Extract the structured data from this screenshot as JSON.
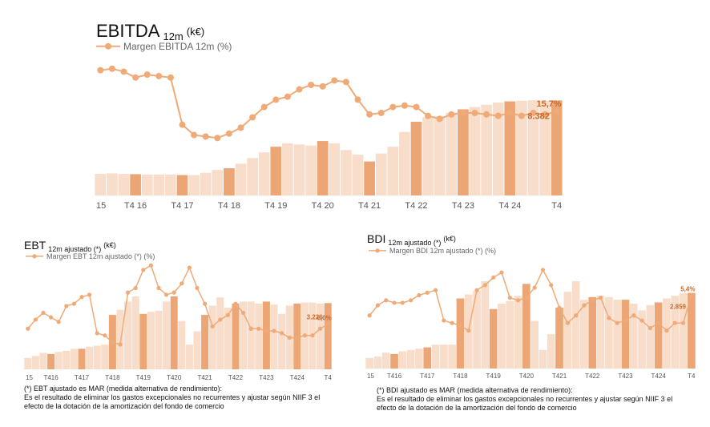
{
  "colors": {
    "bar_light": "#f8ddca",
    "bar_dark": "#eca675",
    "line": "#f0aa78",
    "value_label": "#c56a2a"
  },
  "chart_data": [
    {
      "id": "ebitda",
      "type": "bar",
      "title": "EBITDA",
      "title_sub": "12m",
      "title_unit": "(k€)",
      "legend_line": "Margen EBITDA 12m (%)",
      "x_tick_labels": [
        "15",
        "T4 16",
        "T4 17",
        "T4 18",
        "T4 19",
        "T4 20",
        "T4 21",
        "T4 22",
        "T4 23",
        "T4 24",
        "T4"
      ],
      "tick_positions": [
        0,
        3,
        7,
        11,
        15,
        19,
        23,
        27,
        31,
        35,
        39
      ],
      "bar_values": [
        1900,
        1950,
        1900,
        1880,
        1850,
        1850,
        1850,
        1800,
        1800,
        2000,
        2250,
        2400,
        2800,
        3300,
        3800,
        4300,
        4600,
        4500,
        4400,
        4800,
        4600,
        4000,
        3600,
        3000,
        3700,
        4300,
        5600,
        6500,
        6900,
        7000,
        7300,
        7600,
        7800,
        8000,
        8200,
        8300,
        8350,
        8400,
        8350,
        8382
      ],
      "highlight_bars": [
        3,
        7,
        11,
        15,
        19,
        23,
        27,
        31,
        35,
        39
      ],
      "bar_ylim": [
        0,
        13000
      ],
      "bar_last_label": "8.382",
      "line_values": [
        18.5,
        18.6,
        18.4,
        18.0,
        18.2,
        18.1,
        18.0,
        14.8,
        14.1,
        14.0,
        13.9,
        14.2,
        14.6,
        15.3,
        16.0,
        16.5,
        16.7,
        17.2,
        17.5,
        17.4,
        17.8,
        17.7,
        16.5,
        15.5,
        15.6,
        16.0,
        16.1,
        16.0,
        15.4,
        15.2,
        15.5,
        15.6,
        15.6,
        15.5,
        15.4,
        15.6,
        15.4,
        15.6,
        15.5,
        15.7
      ],
      "line_ylim": [
        10,
        20
      ],
      "line_last_label": "15,7%"
    },
    {
      "id": "ebt",
      "type": "bar",
      "title": "EBT",
      "title_sub": "12m ajustado (*)",
      "title_unit": "(k€)",
      "legend_line": "Margen EBT 12m ajustado (*) (%)",
      "x_tick_labels": [
        "15",
        "T416",
        "T417",
        "T418",
        "T419",
        "T420",
        "T421",
        "T422",
        "T423",
        "T424",
        "T4"
      ],
      "tick_positions": [
        0,
        3,
        7,
        11,
        15,
        19,
        23,
        27,
        31,
        35,
        39
      ],
      "bar_values": [
        550,
        650,
        800,
        750,
        850,
        900,
        1000,
        1000,
        1100,
        1150,
        1200,
        2650,
        2900,
        3300,
        3550,
        2700,
        2800,
        2850,
        3300,
        3550,
        2350,
        1200,
        1850,
        2650,
        3100,
        3500,
        3000,
        3200,
        3300,
        3300,
        3200,
        3300,
        3150,
        2700,
        3100,
        3200,
        3250,
        3250,
        3200,
        3226
      ],
      "highlight_bars": [
        3,
        7,
        11,
        15,
        19,
        23,
        27,
        31,
        35,
        39
      ],
      "bar_ylim": [
        0,
        5500
      ],
      "bar_last_label": "3.226",
      "line_values": [
        5.8,
        6.2,
        6.5,
        6.3,
        6.1,
        6.8,
        6.9,
        7.2,
        7.3,
        5.6,
        5.5,
        5.2,
        5.1,
        7.4,
        7.6,
        8.4,
        8.6,
        7.6,
        7.3,
        7.4,
        7.8,
        8.5,
        7.6,
        6.9,
        5.9,
        6.2,
        6.4,
        6.9,
        6.5,
        5.8,
        5.8,
        5.7,
        5.7,
        5.6,
        5.4,
        5.4,
        5.5,
        5.5,
        5.8,
        6.0
      ],
      "line_ylim": [
        4,
        9
      ],
      "line_last_label": "6,0%"
    },
    {
      "id": "bdi",
      "type": "bar",
      "title": "BDI",
      "title_sub": "12m ajustado (*)",
      "title_unit": "(k€)",
      "legend_line": "Margen BDI 12m ajustado (*) (%)",
      "x_tick_labels": [
        "15",
        "T416",
        "T417",
        "T418",
        "T419",
        "T420",
        "T421",
        "T422",
        "T423",
        "T424",
        "T4"
      ],
      "tick_positions": [
        0,
        3,
        7,
        11,
        15,
        19,
        23,
        27,
        31,
        35,
        39
      ],
      "bar_values": [
        400,
        450,
        600,
        550,
        650,
        700,
        750,
        800,
        900,
        900,
        900,
        2650,
        2800,
        2950,
        3300,
        2250,
        2450,
        2550,
        2750,
        3200,
        1800,
        700,
        1300,
        2300,
        2900,
        3300,
        2600,
        2700,
        2750,
        2700,
        2600,
        2600,
        2450,
        2200,
        2400,
        2500,
        2650,
        2750,
        2850,
        2859
      ],
      "highlight_bars": [
        3,
        7,
        11,
        15,
        19,
        23,
        27,
        31,
        35,
        39
      ],
      "bar_ylim": [
        0,
        4300
      ],
      "bar_last_label": "2.859",
      "line_values": [
        4.6,
        5.0,
        5.2,
        5.1,
        5.1,
        5.2,
        5.4,
        5.5,
        5.6,
        4.4,
        4.3,
        4.2,
        4.0,
        5.6,
        5.8,
        6.1,
        6.3,
        5.3,
        5.2,
        5.3,
        5.7,
        6.4,
        5.8,
        4.9,
        4.3,
        4.6,
        5.0,
        5.2,
        5.3,
        4.5,
        4.3,
        4.4,
        4.6,
        4.4,
        4.1,
        4.3,
        4.0,
        4.3,
        4.3,
        5.4
      ],
      "line_ylim": [
        2.5,
        7
      ],
      "line_last_label": "5,4%"
    }
  ],
  "footnotes": {
    "ebt_line1": "(*) EBT ajustado es MAR (medida alternativa de rendimiento):",
    "ebt_line2": "Es el resultado de eliminar los gastos excepcionales no recurrentes y ajustar según NIIF 3 el",
    "ebt_line3": "efecto de la dotación de la amortización del fondo de comercio",
    "bdi_line1": "(*) BDI ajustado es MAR (medida alternativa de rendimiento):",
    "bdi_line2": "Es el resultado de eliminar los gastos excepcionales no recurrentes y ajustar según NIIF 3 el",
    "bdi_line3": "efecto de la dotación de la amortización del fondo de comercio"
  }
}
